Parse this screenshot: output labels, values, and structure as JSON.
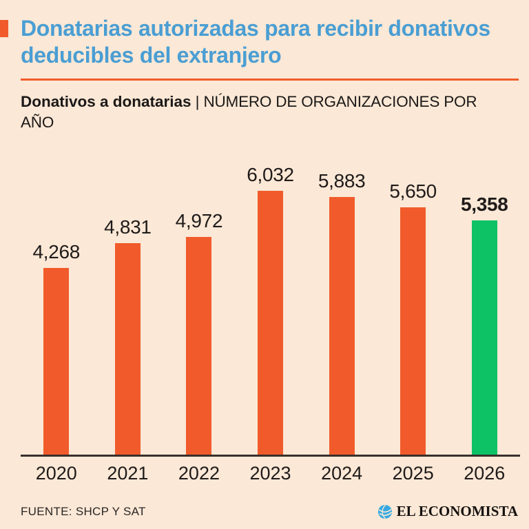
{
  "header": {
    "title": "Donatarias autorizadas para recibir donativos deducibles del extranjero",
    "subtitle_bold": "Donativos a donatarias",
    "subtitle_separator": "|",
    "subtitle_rest": "NÚMERO DE ORGANIZACIONES POR AÑO"
  },
  "chart_data": {
    "type": "bar",
    "title": "Donativos a donatarias | Número de organizaciones por año",
    "categories": [
      "2020",
      "2021",
      "2022",
      "2023",
      "2024",
      "2025",
      "2026"
    ],
    "values": [
      4268,
      4831,
      4972,
      6032,
      5883,
      5650,
      5358
    ],
    "value_labels": [
      "4,268",
      "4,831",
      "4,972",
      "6,032",
      "5,883",
      "5,650",
      "5,358"
    ],
    "bar_colors": [
      "#F15B2B",
      "#F15B2B",
      "#F15B2B",
      "#F15B2B",
      "#F15B2B",
      "#F15B2B",
      "#0DC264"
    ],
    "highlight_index": 6,
    "xlabel": "",
    "ylabel": "",
    "ylim": [
      0,
      6032
    ],
    "grid": false,
    "legend": false,
    "y_axis_visible": false,
    "value_labels_position": "above-bars"
  },
  "footer": {
    "source": "FUENTE: SHCP Y SAT",
    "brand": "EL ECONOMISTA"
  },
  "colors": {
    "background": "#FBE8D6",
    "accent_orange": "#F15B2B",
    "highlight_green": "#0DC264",
    "title_blue": "#4A9ED3",
    "text_dark": "#1F1B1A",
    "axis_line": "#38302C",
    "brand_blue": "#36A9E1"
  }
}
